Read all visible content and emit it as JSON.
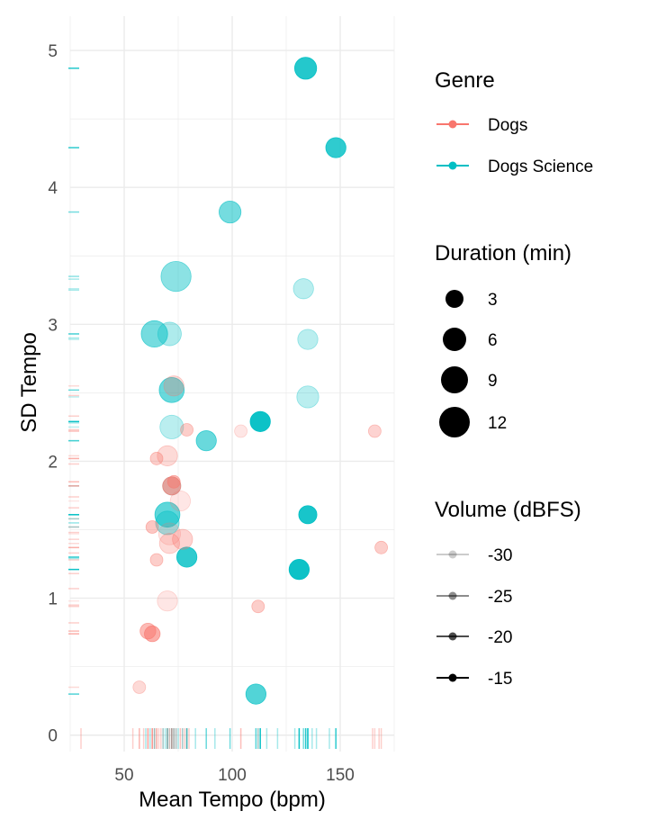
{
  "chart_data": {
    "type": "scatter",
    "xlabel": "Mean Tempo (bpm)",
    "ylabel": "SD Tempo",
    "xlim": [
      25,
      175
    ],
    "ylim": [
      -0.12,
      5.25
    ],
    "x_ticks": [
      50,
      100,
      150
    ],
    "y_ticks": [
      0,
      1,
      2,
      3,
      4,
      5
    ],
    "grid": true,
    "rug": true,
    "series_colors": {
      "Dogs": "#F8766D",
      "Dogs Science": "#00BFC4"
    },
    "legends": {
      "genre": {
        "title": "Genre",
        "entries": [
          "Dogs",
          "Dogs Science"
        ]
      },
      "duration": {
        "title": "Duration (min)",
        "entries": [
          3,
          6,
          9,
          12
        ]
      },
      "volume": {
        "title": "Volume (dBFS)",
        "entries": [
          -30,
          -25,
          -20,
          -15
        ]
      }
    },
    "points": [
      {
        "genre": "Dogs Science",
        "x": 134,
        "y": 4.87,
        "duration": 5,
        "volume": -17
      },
      {
        "genre": "Dogs Science",
        "x": 148,
        "y": 4.29,
        "duration": 4,
        "volume": -18
      },
      {
        "genre": "Dogs Science",
        "x": 99,
        "y": 3.82,
        "duration": 5,
        "volume": -24
      },
      {
        "genre": "Dogs Science",
        "x": 74,
        "y": 3.35,
        "duration": 11,
        "volume": -26
      },
      {
        "genre": "Dogs Science",
        "x": 133,
        "y": 3.26,
        "duration": 4,
        "volume": -30
      },
      {
        "genre": "Dogs Science",
        "x": 64,
        "y": 2.93,
        "duration": 8,
        "volume": -24
      },
      {
        "genre": "Dogs Science",
        "x": 71,
        "y": 2.93,
        "duration": 6,
        "volume": -29
      },
      {
        "genre": "Dogs Science",
        "x": 135,
        "y": 2.89,
        "duration": 4,
        "volume": -30
      },
      {
        "genre": "Dogs Science",
        "x": 72,
        "y": 2.52,
        "duration": 7,
        "volume": -23
      },
      {
        "genre": "Dogs Science",
        "x": 135,
        "y": 2.47,
        "duration": 5,
        "volume": -30
      },
      {
        "genre": "Dogs Science",
        "x": 113,
        "y": 2.29,
        "duration": 4,
        "volume": -15
      },
      {
        "genre": "Dogs Science",
        "x": 72,
        "y": 2.25,
        "duration": 6,
        "volume": -30
      },
      {
        "genre": "Dogs Science",
        "x": 88,
        "y": 2.15,
        "duration": 4,
        "volume": -23
      },
      {
        "genre": "Dogs Science",
        "x": 72,
        "y": 1.82,
        "duration": 3,
        "volume": -30
      },
      {
        "genre": "Dogs Science",
        "x": 135,
        "y": 1.61,
        "duration": 3,
        "volume": -16
      },
      {
        "genre": "Dogs Science",
        "x": 70,
        "y": 1.61,
        "duration": 7,
        "volume": -22
      },
      {
        "genre": "Dogs Science",
        "x": 70,
        "y": 1.55,
        "duration": 6,
        "volume": -27
      },
      {
        "genre": "Dogs Science",
        "x": 79,
        "y": 1.3,
        "duration": 4,
        "volume": -18
      },
      {
        "genre": "Dogs Science",
        "x": 131,
        "y": 1.21,
        "duration": 4,
        "volume": -15
      },
      {
        "genre": "Dogs Science",
        "x": 111,
        "y": 0.3,
        "duration": 4,
        "volume": -21
      },
      {
        "genre": "Dogs",
        "x": 73,
        "y": 2.55,
        "duration": 4,
        "volume": -30
      },
      {
        "genre": "Dogs",
        "x": 79,
        "y": 2.23,
        "duration": 1,
        "volume": -28
      },
      {
        "genre": "Dogs",
        "x": 104,
        "y": 2.22,
        "duration": 1,
        "volume": -32
      },
      {
        "genre": "Dogs",
        "x": 166,
        "y": 2.22,
        "duration": 1,
        "volume": -29
      },
      {
        "genre": "Dogs",
        "x": 70,
        "y": 2.04,
        "duration": 4,
        "volume": -30
      },
      {
        "genre": "Dogs",
        "x": 65,
        "y": 2.02,
        "duration": 1,
        "volume": -28
      },
      {
        "genre": "Dogs",
        "x": 72,
        "y": 1.82,
        "duration": 3,
        "volume": -22
      },
      {
        "genre": "Dogs",
        "x": 73,
        "y": 1.85,
        "duration": 1,
        "volume": -25
      },
      {
        "genre": "Dogs",
        "x": 76,
        "y": 1.71,
        "duration": 4,
        "volume": -32
      },
      {
        "genre": "Dogs",
        "x": 63,
        "y": 1.52,
        "duration": 1,
        "volume": -27
      },
      {
        "genre": "Dogs",
        "x": 71,
        "y": 1.47,
        "duration": 5,
        "volume": -32
      },
      {
        "genre": "Dogs",
        "x": 71,
        "y": 1.4,
        "duration": 4,
        "volume": -30
      },
      {
        "genre": "Dogs",
        "x": 77,
        "y": 1.43,
        "duration": 4,
        "volume": -29
      },
      {
        "genre": "Dogs",
        "x": 169,
        "y": 1.37,
        "duration": 1,
        "volume": -28
      },
      {
        "genre": "Dogs",
        "x": 65,
        "y": 1.28,
        "duration": 1,
        "volume": -28
      },
      {
        "genre": "Dogs",
        "x": 70,
        "y": 0.98,
        "duration": 4,
        "volume": -32
      },
      {
        "genre": "Dogs",
        "x": 112,
        "y": 0.94,
        "duration": 1,
        "volume": -28
      },
      {
        "genre": "Dogs",
        "x": 61,
        "y": 0.76,
        "duration": 2,
        "volume": -25
      },
      {
        "genre": "Dogs",
        "x": 63,
        "y": 0.74,
        "duration": 2,
        "volume": -23
      },
      {
        "genre": "Dogs",
        "x": 57,
        "y": 0.35,
        "duration": 1,
        "volume": -30
      }
    ],
    "extra_rug_x": [
      {
        "genre": "Dogs",
        "values": [
          30,
          54,
          57,
          59,
          61,
          64,
          66,
          67,
          68,
          74,
          76,
          78,
          80,
          104,
          165,
          168
        ]
      },
      {
        "genre": "Dogs Science",
        "values": [
          60,
          62,
          68,
          69,
          73,
          75,
          77,
          79,
          83,
          92,
          112,
          116,
          121,
          129,
          133,
          137,
          139,
          145
        ]
      }
    ],
    "extra_rug_y": [
      {
        "genre": "Dogs",
        "values": [
          0.82,
          0.95,
          1.07,
          1.18,
          1.33,
          1.37,
          1.48,
          1.58,
          1.66,
          1.74,
          1.98,
          2.02,
          2.33,
          2.48
        ]
      },
      {
        "genre": "Dogs Science",
        "values": [
          2.9,
          3.25,
          3.33,
          1.58,
          1.52,
          1.29,
          2.28,
          2.15
        ]
      }
    ]
  }
}
